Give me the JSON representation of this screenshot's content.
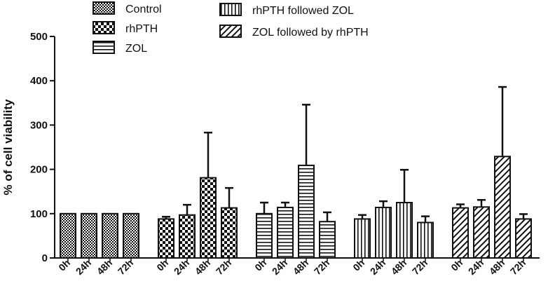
{
  "chart_data": {
    "type": "bar",
    "title": "",
    "xlabel": "",
    "ylabel": "% of cell viability",
    "ylim": [
      0,
      500
    ],
    "yticks": [
      0,
      100,
      200,
      300,
      400,
      500
    ],
    "grid": false,
    "legend_position": "top",
    "categories": [
      "0h",
      "24h",
      "48h",
      "72h"
    ],
    "series": [
      {
        "name": "Control",
        "pattern": "checker-small",
        "values": [
          100,
          100,
          100,
          100
        ],
        "errors": [
          0,
          0,
          0,
          0
        ]
      },
      {
        "name": "rhPTH",
        "pattern": "checker-large",
        "values": [
          88,
          97,
          181,
          113
        ],
        "errors": [
          5,
          23,
          102,
          45
        ]
      },
      {
        "name": "ZOL",
        "pattern": "horizontal-lines",
        "values": [
          100,
          114,
          209,
          82
        ],
        "errors": [
          25,
          11,
          137,
          21
        ]
      },
      {
        "name": "rhPTH followed ZOL",
        "pattern": "vertical-lines",
        "values": [
          88,
          114,
          125,
          80
        ],
        "errors": [
          9,
          14,
          74,
          14
        ]
      },
      {
        "name": "ZOL followed by rhPTH",
        "pattern": "diagonal-lines",
        "values": [
          113,
          115,
          229,
          88
        ],
        "errors": [
          8,
          16,
          157,
          11
        ]
      }
    ]
  }
}
